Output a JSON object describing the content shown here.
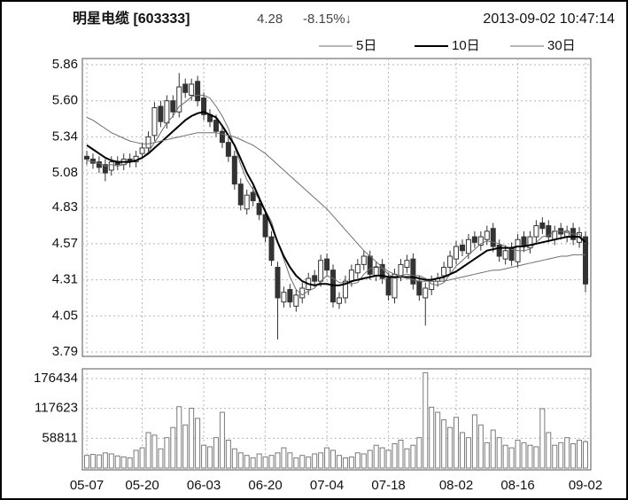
{
  "chart_data": [
    {
      "type": "candlestick",
      "title": "明星电缆 [603333]",
      "last_price": "4.28",
      "change": "-8.15%↓",
      "timestamp": "2013-09-02  10:47:14",
      "categories": [
        "05-07",
        null,
        null,
        null,
        null,
        null,
        null,
        null,
        null,
        "05-20",
        null,
        null,
        null,
        null,
        null,
        null,
        null,
        null,
        null,
        "06-03",
        null,
        null,
        null,
        null,
        null,
        null,
        null,
        null,
        null,
        "06-20",
        null,
        null,
        null,
        null,
        null,
        null,
        null,
        null,
        null,
        "07-04",
        null,
        null,
        null,
        null,
        null,
        null,
        null,
        null,
        null,
        "07-18",
        null,
        null,
        null,
        null,
        null,
        null,
        null,
        null,
        null,
        null,
        "08-02",
        null,
        null,
        null,
        null,
        null,
        null,
        null,
        null,
        null,
        "08-16",
        null,
        null,
        null,
        null,
        null,
        null,
        null,
        null,
        null,
        null,
        "09-02"
      ],
      "open": [
        5.2,
        5.18,
        5.16,
        5.14,
        5.1,
        5.16,
        5.14,
        5.18,
        5.16,
        5.22,
        5.26,
        5.35,
        5.56,
        5.44,
        5.6,
        5.52,
        5.72,
        5.64,
        5.74,
        5.62,
        5.5,
        5.46,
        5.38,
        5.3,
        5.2,
        5.0,
        4.82,
        4.94,
        4.86,
        4.78,
        4.62,
        4.4,
        4.15,
        4.24,
        4.12,
        4.18,
        4.24,
        4.34,
        4.3,
        4.46,
        4.38,
        4.14,
        4.18,
        4.3,
        4.36,
        4.42,
        4.48,
        4.34,
        4.42,
        4.32,
        4.18,
        4.34,
        4.4,
        4.46,
        4.3,
        4.18,
        4.24,
        4.3,
        4.34,
        4.4,
        4.46,
        4.56,
        4.5,
        4.62,
        4.56,
        4.6,
        4.68,
        4.56,
        4.46,
        4.54,
        4.44,
        4.62,
        4.54,
        4.62,
        4.72,
        4.7,
        4.6,
        4.68,
        4.62,
        4.68,
        4.58,
        4.62
      ],
      "high": [
        5.24,
        5.22,
        5.2,
        5.18,
        5.2,
        5.2,
        5.22,
        5.22,
        5.24,
        5.3,
        5.38,
        5.59,
        5.6,
        5.64,
        5.64,
        5.8,
        5.76,
        5.76,
        5.78,
        5.66,
        5.54,
        5.5,
        5.42,
        5.34,
        5.24,
        5.04,
        4.96,
        4.98,
        4.9,
        4.82,
        4.66,
        4.44,
        4.26,
        4.28,
        4.24,
        4.29,
        4.36,
        4.38,
        4.49,
        4.5,
        4.42,
        4.22,
        4.34,
        4.42,
        4.46,
        4.52,
        4.52,
        4.44,
        4.46,
        4.36,
        4.39,
        4.46,
        4.49,
        4.5,
        4.34,
        4.29,
        4.34,
        4.36,
        4.44,
        4.52,
        4.59,
        4.6,
        4.64,
        4.66,
        4.66,
        4.7,
        4.72,
        4.6,
        4.56,
        4.58,
        4.64,
        4.66,
        4.66,
        4.74,
        4.76,
        4.74,
        4.7,
        4.72,
        4.7,
        4.72,
        4.69,
        4.66
      ],
      "low": [
        5.14,
        5.11,
        5.08,
        5.02,
        5.06,
        5.1,
        5.1,
        5.12,
        5.12,
        5.18,
        5.22,
        5.31,
        5.41,
        5.4,
        5.48,
        5.48,
        5.62,
        5.6,
        5.56,
        5.46,
        5.41,
        5.34,
        5.26,
        5.16,
        4.96,
        4.81,
        4.78,
        4.84,
        4.74,
        4.58,
        4.41,
        3.88,
        4.11,
        4.11,
        4.08,
        4.14,
        4.2,
        4.26,
        4.26,
        4.34,
        4.11,
        4.1,
        4.14,
        4.26,
        4.32,
        4.38,
        4.31,
        4.3,
        4.28,
        4.16,
        4.14,
        4.3,
        4.36,
        4.24,
        4.16,
        3.98,
        4.2,
        4.26,
        4.3,
        4.36,
        4.42,
        4.48,
        4.46,
        4.54,
        4.52,
        4.56,
        4.51,
        4.44,
        4.42,
        4.41,
        4.4,
        4.51,
        4.5,
        4.58,
        4.64,
        4.58,
        4.56,
        4.6,
        4.58,
        4.56,
        4.54,
        4.22
      ],
      "close": [
        5.18,
        5.15,
        5.12,
        5.08,
        5.16,
        5.14,
        5.18,
        5.16,
        5.2,
        5.26,
        5.34,
        5.55,
        5.45,
        5.6,
        5.52,
        5.7,
        5.66,
        5.72,
        5.6,
        5.5,
        5.45,
        5.38,
        5.3,
        5.2,
        5.0,
        4.85,
        4.92,
        4.88,
        4.78,
        4.62,
        4.45,
        4.18,
        4.22,
        4.15,
        4.2,
        4.25,
        4.32,
        4.3,
        4.45,
        4.38,
        4.15,
        4.18,
        4.3,
        4.38,
        4.42,
        4.48,
        4.35,
        4.4,
        4.32,
        4.2,
        4.35,
        4.42,
        4.45,
        4.28,
        4.2,
        4.25,
        4.3,
        4.32,
        4.4,
        4.48,
        4.55,
        4.52,
        4.6,
        4.58,
        4.62,
        4.66,
        4.55,
        4.48,
        4.52,
        4.45,
        4.6,
        4.55,
        4.62,
        4.7,
        4.68,
        4.62,
        4.66,
        4.64,
        4.66,
        4.6,
        4.65,
        4.28
      ],
      "up_color": "#ffffff",
      "down_color": "#333333",
      "candle_stroke": "#333333",
      "series": [
        {
          "name": "5日",
          "color": "#6f6f6f",
          "line_width": 1,
          "values": [
            5.17,
            5.16,
            5.15,
            5.13,
            5.14,
            5.13,
            5.14,
            5.16,
            5.17,
            5.19,
            5.23,
            5.3,
            5.37,
            5.44,
            5.49,
            5.56,
            5.59,
            5.63,
            5.64,
            5.64,
            5.62,
            5.56,
            5.49,
            5.4,
            5.27,
            5.14,
            5.03,
            4.96,
            4.89,
            4.81,
            4.73,
            4.58,
            4.46,
            4.33,
            4.24,
            4.2,
            4.23,
            4.25,
            4.3,
            4.34,
            4.32,
            4.29,
            4.29,
            4.28,
            4.29,
            4.35,
            4.39,
            4.41,
            4.39,
            4.35,
            4.32,
            4.34,
            4.35,
            4.34,
            4.34,
            4.32,
            4.28,
            4.27,
            4.29,
            4.35,
            4.41,
            4.45,
            4.49,
            4.53,
            4.57,
            4.59,
            4.58,
            4.57,
            4.55,
            4.53,
            4.52,
            4.52,
            4.53,
            4.58,
            4.62,
            4.63,
            4.66,
            4.66,
            4.65,
            4.64,
            4.64,
            4.57
          ]
        },
        {
          "name": "10日",
          "color": "#000000",
          "line_width": 2,
          "values": [
            5.28,
            5.25,
            5.22,
            5.19,
            5.17,
            5.16,
            5.16,
            5.16,
            5.17,
            5.19,
            5.22,
            5.26,
            5.3,
            5.34,
            5.38,
            5.42,
            5.46,
            5.49,
            5.51,
            5.52,
            5.5,
            5.48,
            5.42,
            5.35,
            5.28,
            5.18,
            5.08,
            5.0,
            4.9,
            4.8,
            4.7,
            4.58,
            4.48,
            4.4,
            4.34,
            4.3,
            4.28,
            4.27,
            4.28,
            4.28,
            4.27,
            4.27,
            4.28,
            4.3,
            4.31,
            4.32,
            4.33,
            4.34,
            4.34,
            4.33,
            4.33,
            4.33,
            4.33,
            4.33,
            4.32,
            4.31,
            4.31,
            4.32,
            4.33,
            4.35,
            4.37,
            4.4,
            4.43,
            4.46,
            4.49,
            4.52,
            4.53,
            4.54,
            4.54,
            4.54,
            4.55,
            4.55,
            4.56,
            4.57,
            4.58,
            4.59,
            4.6,
            4.61,
            4.62,
            4.62,
            4.62,
            4.58
          ]
        },
        {
          "name": "30日",
          "color": "#6f6f6f",
          "line_width": 1,
          "values": [
            5.48,
            5.46,
            5.43,
            5.4,
            5.37,
            5.35,
            5.33,
            5.31,
            5.3,
            5.29,
            5.29,
            5.3,
            5.31,
            5.32,
            5.33,
            5.34,
            5.35,
            5.36,
            5.37,
            5.37,
            5.37,
            5.37,
            5.36,
            5.35,
            5.34,
            5.32,
            5.3,
            5.28,
            5.25,
            5.22,
            5.18,
            5.14,
            5.1,
            5.06,
            5.02,
            4.98,
            4.94,
            4.9,
            4.86,
            4.82,
            4.77,
            4.72,
            4.67,
            4.62,
            4.57,
            4.52,
            4.48,
            4.44,
            4.4,
            4.37,
            4.35,
            4.33,
            4.32,
            4.31,
            4.3,
            4.3,
            4.3,
            4.3,
            4.3,
            4.31,
            4.32,
            4.33,
            4.34,
            4.35,
            4.36,
            4.37,
            4.38,
            4.38,
            4.39,
            4.4,
            4.41,
            4.42,
            4.43,
            4.44,
            4.45,
            4.46,
            4.47,
            4.48,
            4.48,
            4.49,
            4.49,
            4.49
          ]
        }
      ],
      "ylim": [
        3.79,
        5.86
      ],
      "yticks": [
        5.86,
        {
          "value": 5.6,
          "label": "5.60"
        },
        5.34,
        5.08,
        4.83,
        4.57,
        4.31,
        4.05,
        3.79
      ],
      "grid": true
    },
    {
      "type": "bar",
      "values": [
        25000,
        27000,
        26000,
        30000,
        28000,
        24000,
        22000,
        20000,
        35000,
        40000,
        70000,
        65000,
        38000,
        60000,
        80000,
        121000,
        85000,
        118000,
        98000,
        45000,
        42000,
        60000,
        110000,
        55000,
        38000,
        30000,
        25000,
        20000,
        28000,
        22000,
        25000,
        30000,
        40000,
        30000,
        20000,
        25000,
        22000,
        28000,
        30000,
        40000,
        35000,
        25000,
        20000,
        22000,
        30000,
        28000,
        35000,
        45000,
        40000,
        35000,
        48000,
        55000,
        38000,
        45000,
        60000,
        188000,
        120000,
        110000,
        95000,
        80000,
        100000,
        70000,
        60000,
        105000,
        85000,
        50000,
        75000,
        60000,
        45000,
        40000,
        55000,
        50000,
        45000,
        42000,
        117000,
        70000,
        45000,
        50000,
        60000,
        48000,
        55000,
        52000
      ],
      "color": "#7a7a7a",
      "ylim": [
        0,
        188700
      ],
      "yticks": [
        176434,
        117623,
        58811
      ],
      "grid": true
    }
  ]
}
